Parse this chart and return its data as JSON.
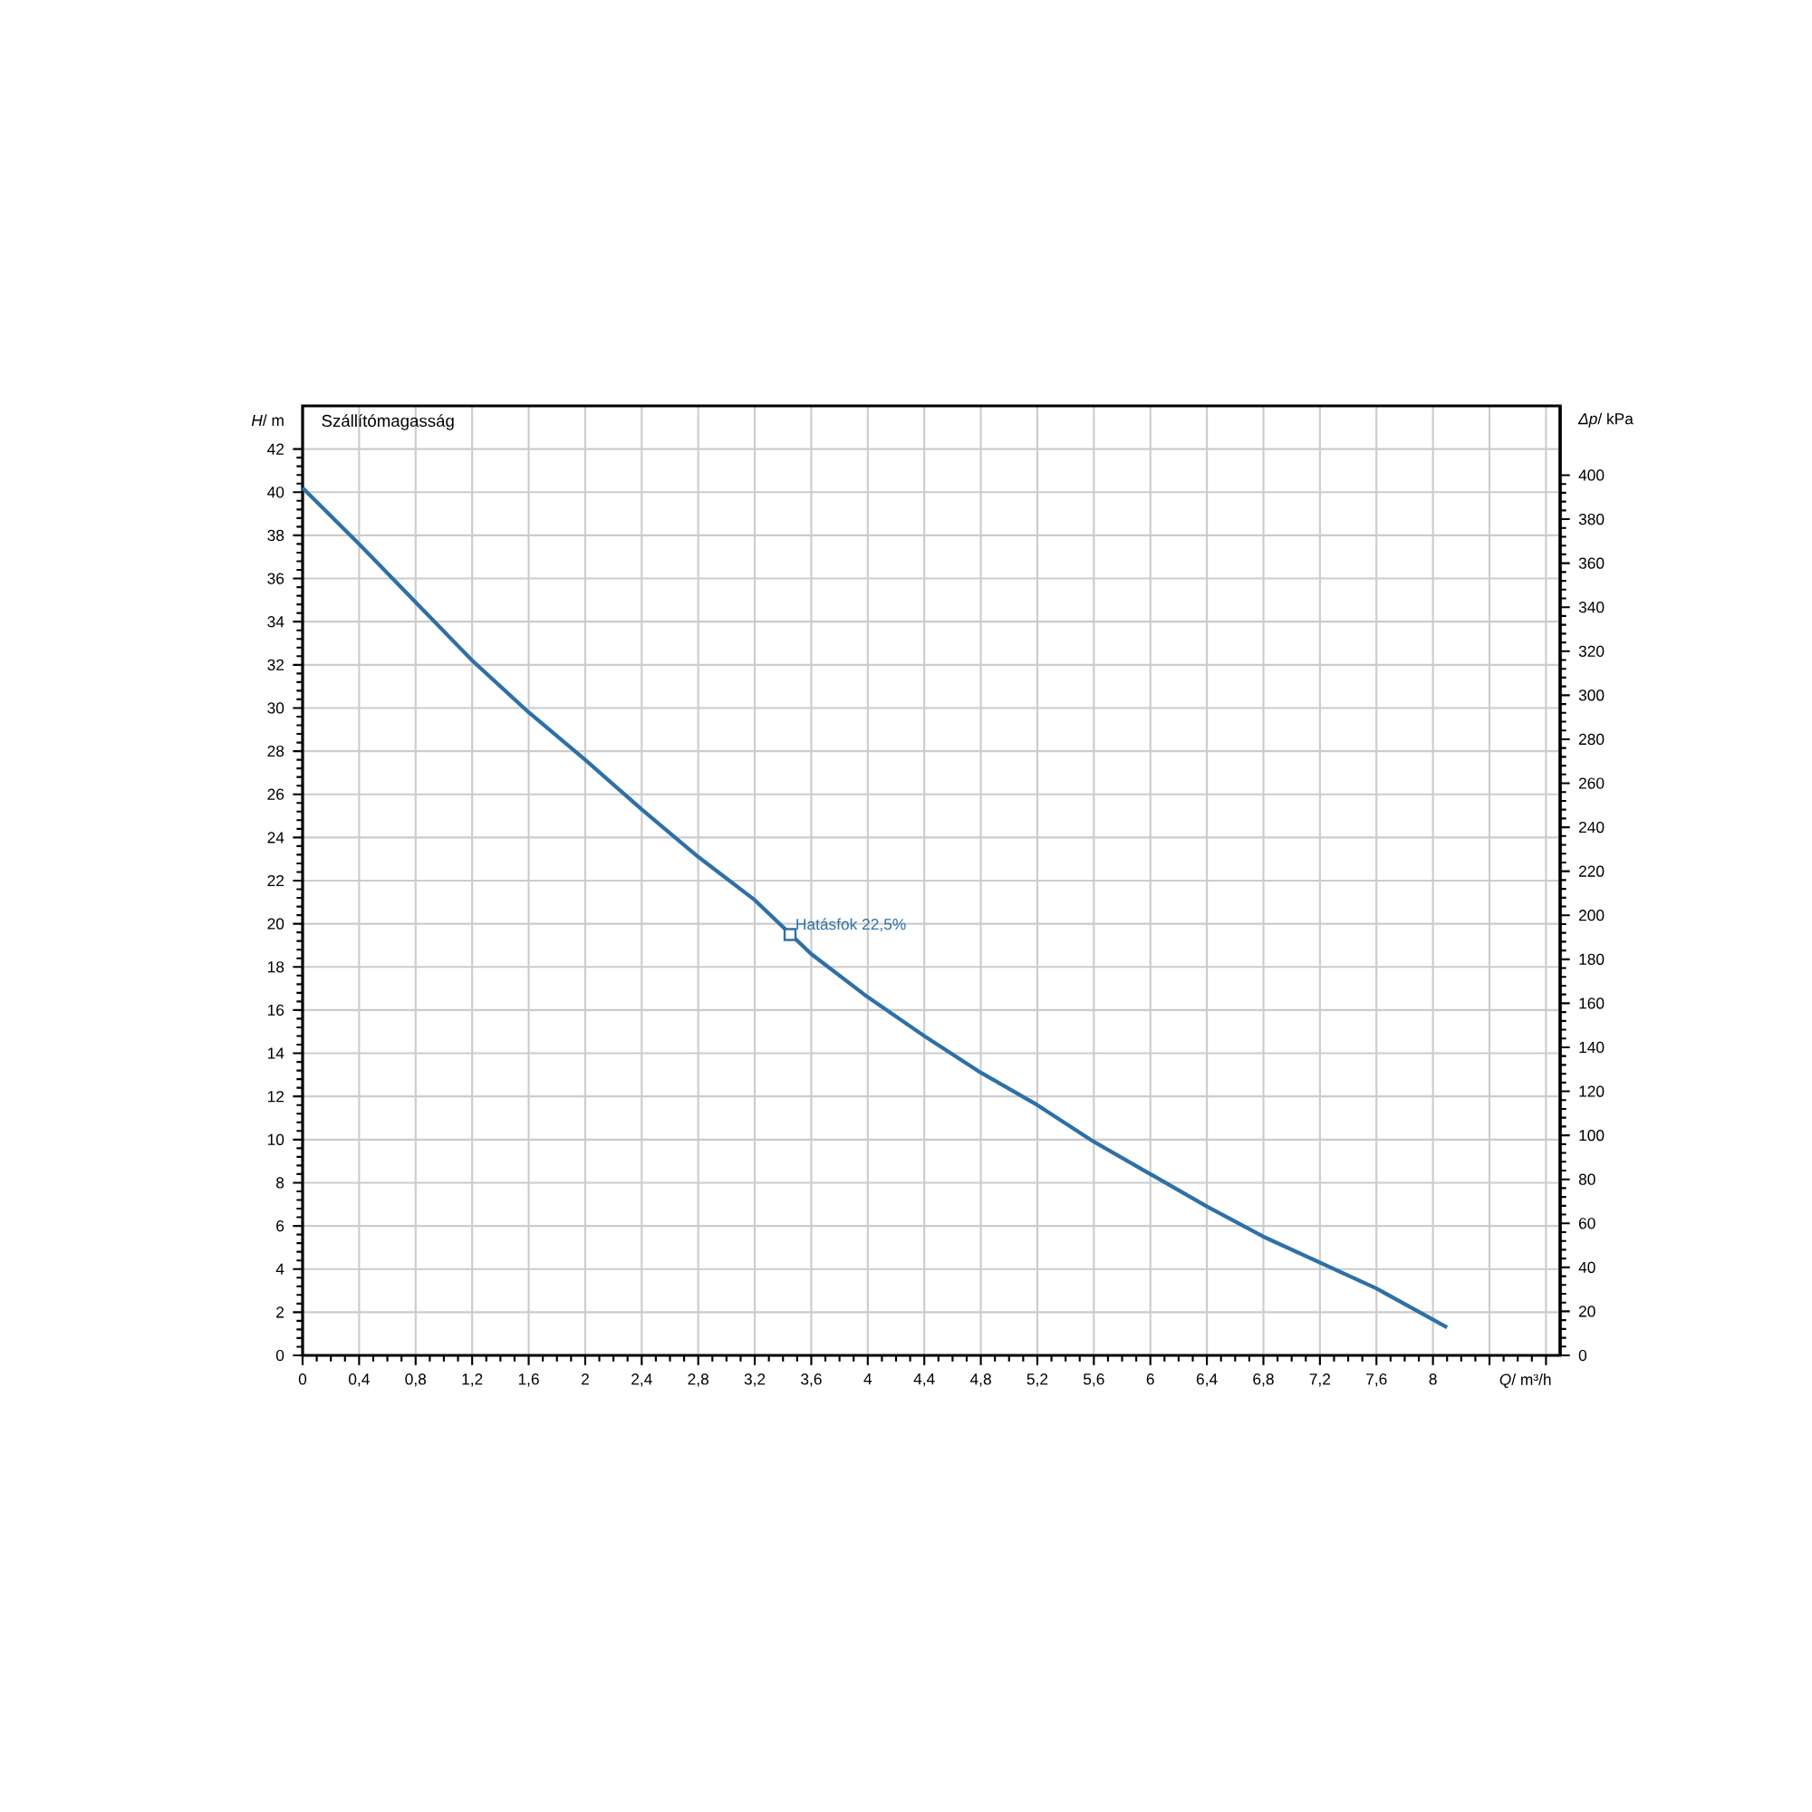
{
  "chart_data": {
    "type": "line",
    "title": "Szállítómagasság",
    "xlabel": "*Q*/ m³/h",
    "ylabel": "*H*/ m",
    "y2label": "*Δp*/ kPa",
    "x": [
      0,
      0.4,
      0.8,
      1.2,
      1.6,
      2,
      2.4,
      2.8,
      3.2,
      3.6,
      4,
      4.4,
      4.8,
      5.2,
      5.6,
      6,
      6.4,
      6.8,
      7.2,
      7.6,
      8.1
    ],
    "series": [
      {
        "color": "#2e70a8",
        "values": [
          40.2,
          37.6,
          34.9,
          32.2,
          29.8,
          27.6,
          25.3,
          23.1,
          21.1,
          18.6,
          16.6,
          14.8,
          13.1,
          11.6,
          9.9,
          8.4,
          6.9,
          5.5,
          4.3,
          3.1,
          1.3
        ]
      }
    ],
    "annotations": [
      {
        "text": "Hatásfok 22,5%",
        "x": 3.45,
        "y": 19.5
      }
    ],
    "marker": "none",
    "grid": true,
    "xlim": [
      0,
      8.9
    ],
    "xticks": [
      0,
      {
        "value": 0.4,
        "label": "0,4"
      },
      {
        "value": 0.8,
        "label": "0,8"
      },
      {
        "value": 1.2,
        "label": "1,2"
      },
      {
        "value": 1.6,
        "label": "1,6"
      },
      2,
      {
        "value": 2.4,
        "label": "2,4"
      },
      {
        "value": 2.8,
        "label": "2,8"
      },
      {
        "value": 3.2,
        "label": "3,2"
      },
      {
        "value": 3.6,
        "label": "3,6"
      },
      4,
      {
        "value": 4.4,
        "label": "4,4"
      },
      {
        "value": 4.8,
        "label": "4,8"
      },
      {
        "value": 5.2,
        "label": "5,2"
      },
      {
        "value": 5.6,
        "label": "5,6"
      },
      6,
      {
        "value": 6.4,
        "label": "6,4"
      },
      {
        "value": 6.8,
        "label": "6,8"
      },
      {
        "value": 7.2,
        "label": "7,2"
      },
      {
        "value": 7.6,
        "label": "7,6"
      },
      8,
      {
        "value": 8.4,
        "label": null
      },
      {
        "value": 8.8,
        "label": null
      }
    ],
    "ylim": [
      0,
      44
    ],
    "yticks": [
      0,
      2,
      4,
      6,
      8,
      10,
      12,
      14,
      16,
      18,
      20,
      22,
      24,
      26,
      28,
      30,
      32,
      34,
      36,
      38,
      40,
      42
    ],
    "y2lim": [
      0,
      431.5
    ],
    "y2ticks": [
      0,
      20,
      40,
      60,
      80,
      100,
      120,
      140,
      160,
      180,
      200,
      220,
      240,
      260,
      280,
      300,
      320,
      340,
      360,
      380,
      400
    ]
  }
}
